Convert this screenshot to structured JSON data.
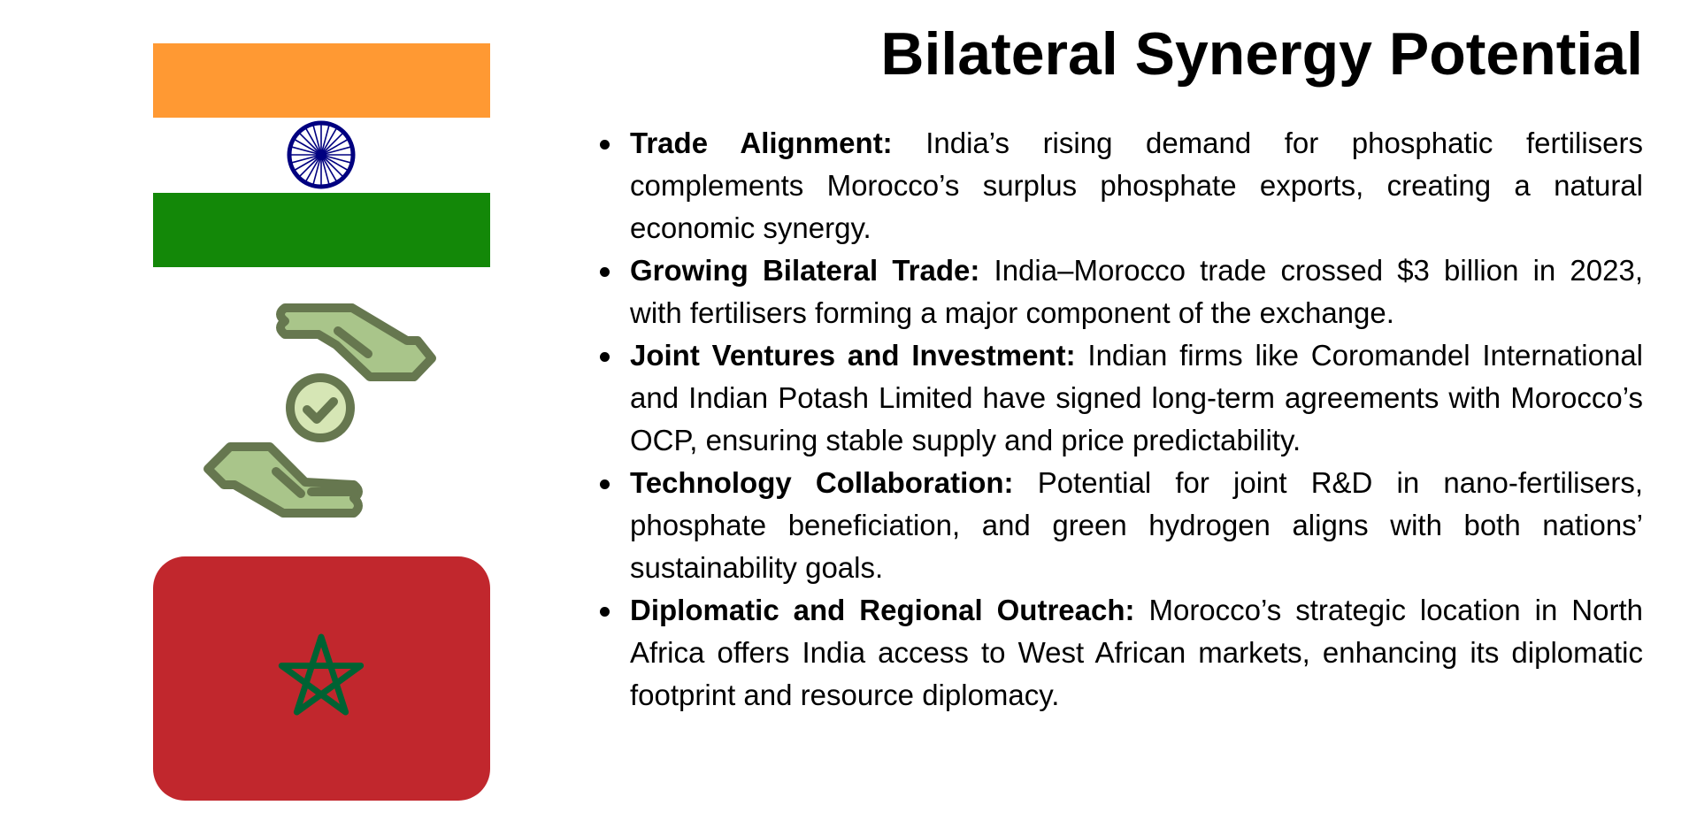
{
  "title": "Bilateral Synergy Potential",
  "colors": {
    "saffron": "#ff9933",
    "india_green": "#138808",
    "chakra": "#000080",
    "morocco_red": "#c1272d",
    "morocco_star": "#006233",
    "hand_fill": "#a9c58a",
    "hand_stroke": "#66774f",
    "check_fill": "#d6e6b5"
  },
  "icons": [
    "india-flag",
    "handshake-agreement-icon",
    "morocco-flag"
  ],
  "bullets": [
    {
      "heading": "Trade Alignment:",
      "text": " India’s rising demand for phosphatic fertilisers complements Morocco’s surplus phosphate exports, creating a natural economic synergy."
    },
    {
      "heading": "Growing Bilateral Trade:",
      "text": " India–Morocco trade crossed $3 billion in 2023, with fertilisers forming a major component of the exchange."
    },
    {
      "heading": "Joint Ventures and Investment:",
      "text": " Indian firms like Coromandel International and Indian Potash Limited have signed long-term agreements with Morocco’s OCP, ensuring stable supply and price predictability."
    },
    {
      "heading": "Technology Collaboration:",
      "text": " Potential for joint R&D in nano-fertilisers, phosphate beneficiation, and green hydrogen aligns with both nations’ sustainability goals."
    },
    {
      "heading": "Diplomatic and Regional Outreach:",
      "text": " Morocco’s strategic location in North Africa offers India access to West African markets, enhancing its diplomatic footprint and resource diplomacy."
    }
  ]
}
